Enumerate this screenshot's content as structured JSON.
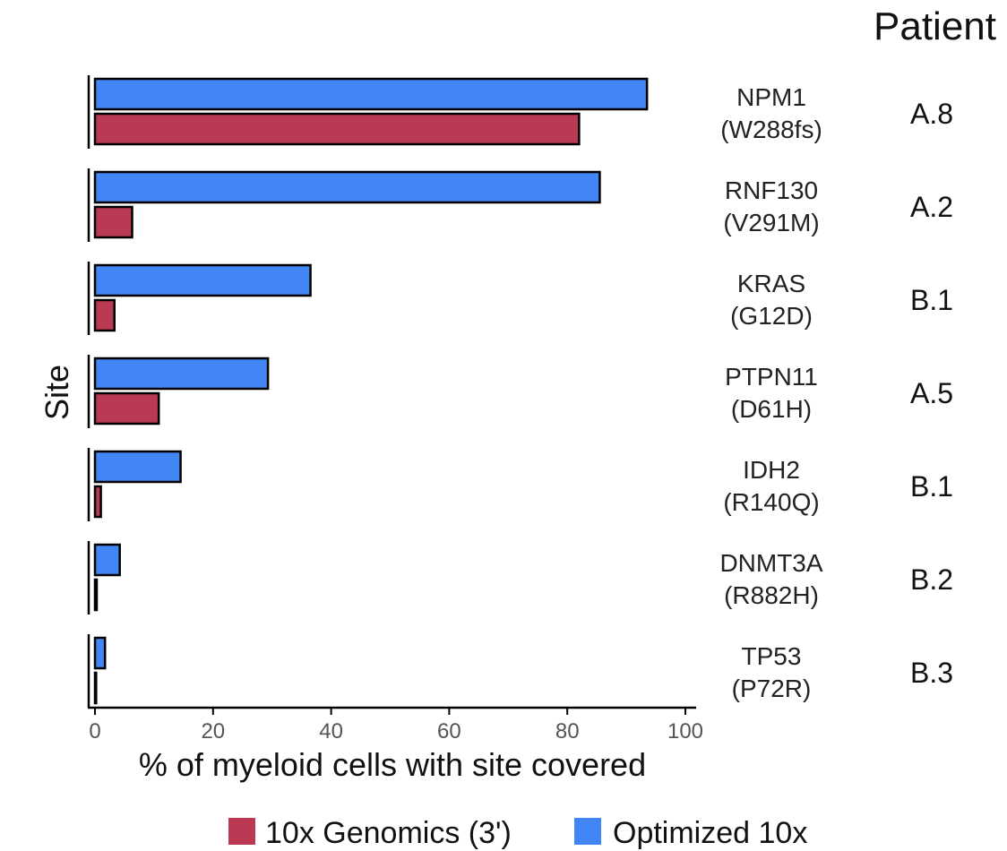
{
  "chart_data": {
    "type": "bar",
    "orientation": "horizontal",
    "ylabel": "Site",
    "xlabel": "% of myeloid cells with site covered",
    "xlim": [
      0,
      100
    ],
    "xticks": [
      0,
      20,
      40,
      60,
      80,
      100
    ],
    "grid": false,
    "legend_position": "bottom",
    "patient_header": "Patient",
    "categories": [
      {
        "site": "NPM1",
        "mutation": "(W288fs)",
        "patient": "A.8"
      },
      {
        "site": "RNF130",
        "mutation": "(V291M)",
        "patient": "A.2"
      },
      {
        "site": "KRAS",
        "mutation": "(G12D)",
        "patient": "B.1"
      },
      {
        "site": "PTPN11",
        "mutation": "(D61H)",
        "patient": "A.5"
      },
      {
        "site": "IDH2",
        "mutation": "(R140Q)",
        "patient": "B.1"
      },
      {
        "site": "DNMT3A",
        "mutation": "(R882H)",
        "patient": "B.2"
      },
      {
        "site": "TP53",
        "mutation": "(P72R)",
        "patient": "B.3"
      }
    ],
    "series": [
      {
        "name": "Optimized 10x",
        "color": "#4285f4",
        "values": [
          93.5,
          85.5,
          36.5,
          29.3,
          14.5,
          4.2,
          1.7
        ]
      },
      {
        "name": "10x Genomics (3')",
        "color": "#b93a52",
        "values": [
          82,
          6.3,
          3.3,
          10.8,
          1.0,
          0.3,
          0.2
        ]
      }
    ],
    "legend_order": [
      "10x Genomics (3')",
      "Optimized 10x"
    ]
  }
}
